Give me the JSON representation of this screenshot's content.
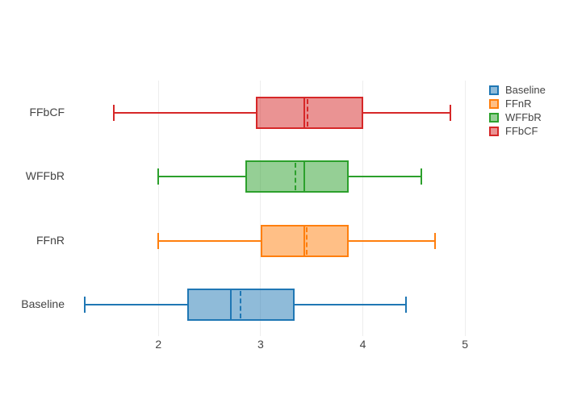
{
  "chart_data": {
    "type": "box",
    "orientation": "horizontal",
    "title": "",
    "xlabel": "",
    "ylabel": "",
    "x_range": [
      1.2,
      5.28
    ],
    "x_ticks": [
      "2",
      "3",
      "4",
      "5"
    ],
    "x_tick_values": [
      2,
      3,
      4,
      5
    ],
    "grid": true,
    "legend_position": "right",
    "mean_line": "dashed",
    "series": [
      {
        "name": "Baseline",
        "line_color": "#1f77b4",
        "fill_color": "rgba(31,119,180,0.5)",
        "min": 1.28,
        "q1": 2.28,
        "median": 2.71,
        "mean": 2.8,
        "q3": 3.33,
        "max": 4.42
      },
      {
        "name": "FFnR",
        "line_color": "#ff7f0e",
        "fill_color": "rgba(255,127,14,0.5)",
        "min": 2.0,
        "q1": 3.0,
        "median": 3.43,
        "mean": 3.45,
        "q3": 3.86,
        "max": 4.71
      },
      {
        "name": "WFFbR",
        "line_color": "#2ca02c",
        "fill_color": "rgba(44,160,44,0.5)",
        "min": 2.0,
        "q1": 2.85,
        "median": 3.43,
        "mean": 3.34,
        "q3": 3.86,
        "max": 4.57
      },
      {
        "name": "FFbCF",
        "line_color": "#d62728",
        "fill_color": "rgba(214,39,40,0.5)",
        "min": 1.56,
        "q1": 2.95,
        "median": 3.43,
        "mean": 3.46,
        "q3": 4.0,
        "max": 4.86
      }
    ]
  }
}
